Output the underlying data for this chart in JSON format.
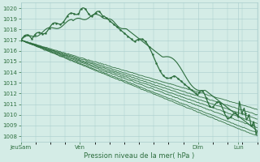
{
  "bg_color": "#d4ece6",
  "grid_color": "#a8cccc",
  "line_color": "#2d6e3e",
  "ylim": [
    1007.5,
    1020.5
  ],
  "xlabel": "Pression niveau de la mer( hPa )",
  "xtick_labels": [
    "JeuSam",
    "Ven",
    "Dim",
    "Lun"
  ],
  "xtick_positions": [
    0,
    0.25,
    0.75,
    0.92
  ],
  "ylabel_ticks": [
    1008,
    1009,
    1010,
    1011,
    1012,
    1013,
    1014,
    1015,
    1016,
    1017,
    1018,
    1019,
    1020
  ],
  "figsize": [
    3.2,
    2.0
  ],
  "dpi": 100
}
